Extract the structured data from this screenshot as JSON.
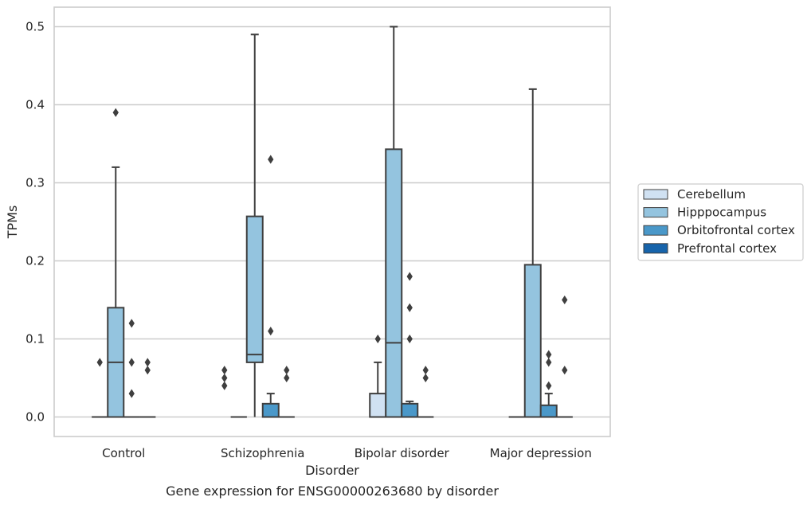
{
  "chart_data": {
    "type": "box",
    "caption": "Gene expression for ENSG00000263680 by disorder",
    "xlabel": "Disorder",
    "ylabel": "TPMs",
    "ylim": [
      -0.025,
      0.525
    ],
    "yticks": [
      0.0,
      0.1,
      0.2,
      0.3,
      0.4,
      0.5
    ],
    "ytick_labels": [
      "0.0",
      "0.1",
      "0.2",
      "0.3",
      "0.4",
      "0.5"
    ],
    "grid": "horizontal",
    "legend_position": "right",
    "categories": [
      "Control",
      "Schizophrenia",
      "Bipolar disorder",
      "Major depression"
    ],
    "series": [
      {
        "name": "Cerebellum",
        "color": "#d0e1f2",
        "boxes": [
          {
            "q1": 0,
            "median": 0,
            "q3": 0,
            "whisker_low": 0,
            "whisker_high": 0,
            "outliers": [
              0.07
            ]
          },
          {
            "q1": 0,
            "median": 0,
            "q3": 0,
            "whisker_low": 0,
            "whisker_high": 0,
            "outliers": []
          },
          {
            "q1": 0,
            "median": 0,
            "q3": 0.03,
            "whisker_low": 0,
            "whisker_high": 0.07,
            "outliers": [
              0.1
            ]
          },
          {
            "q1": 0,
            "median": 0,
            "q3": 0,
            "whisker_low": 0,
            "whisker_high": 0,
            "outliers": []
          }
        ]
      },
      {
        "name": "Hipppocampus",
        "color": "#94c4df",
        "boxes": [
          {
            "q1": 0,
            "median": 0.07,
            "q3": 0.14,
            "whisker_low": 0,
            "whisker_high": 0.32,
            "outliers": [
              0.39
            ]
          },
          {
            "q1": 0.07,
            "median": 0.08,
            "q3": 0.257,
            "whisker_low": 0,
            "whisker_high": 0.49,
            "outliers": []
          },
          {
            "q1": 0,
            "median": 0.095,
            "q3": 0.343,
            "whisker_low": 0,
            "whisker_high": 0.5,
            "outliers": []
          },
          {
            "q1": 0,
            "median": 0,
            "q3": 0.195,
            "whisker_low": 0,
            "whisker_high": 0.42,
            "outliers": []
          }
        ]
      },
      {
        "name": "Orbitofrontal cortex",
        "color": "#4a98c9",
        "boxes": [
          {
            "q1": 0,
            "median": 0,
            "q3": 0,
            "whisker_low": 0,
            "whisker_high": 0,
            "outliers": [
              0.12,
              0.07,
              0.03
            ]
          },
          {
            "q1": 0,
            "median": 0,
            "q3": 0.017,
            "whisker_low": 0,
            "whisker_high": 0.03,
            "outliers": [
              0.33,
              0.11
            ]
          },
          {
            "q1": 0,
            "median": 0,
            "q3": 0.017,
            "whisker_low": 0,
            "whisker_high": 0.02,
            "outliers": [
              0.18,
              0.14,
              0.1
            ]
          },
          {
            "q1": 0,
            "median": 0,
            "q3": 0.015,
            "whisker_low": 0,
            "whisker_high": 0.03,
            "outliers": [
              0.08,
              0.07,
              0.04
            ]
          }
        ]
      },
      {
        "name": "Prefrontal cortex",
        "color": "#1764ab",
        "boxes": [
          {
            "q1": 0,
            "median": 0,
            "q3": 0,
            "whisker_low": 0,
            "whisker_high": 0,
            "outliers": [
              0.07,
              0.06
            ]
          },
          {
            "q1": 0,
            "median": 0,
            "q3": 0,
            "whisker_low": 0,
            "whisker_high": 0,
            "outliers": [
              0.06,
              0.05
            ]
          },
          {
            "q1": 0,
            "median": 0,
            "q3": 0,
            "whisker_low": 0,
            "whisker_high": 0,
            "outliers": [
              0.06,
              0.05
            ]
          },
          {
            "q1": 0,
            "median": 0,
            "q3": 0,
            "whisker_low": 0,
            "whisker_high": 0,
            "outliers": [
              0.15,
              0.06
            ]
          }
        ]
      }
    ],
    "extra_outliers": [
      {
        "category_index": 1,
        "series_index": 0,
        "values": [
          0.06,
          0.05,
          0.04
        ]
      }
    ]
  }
}
